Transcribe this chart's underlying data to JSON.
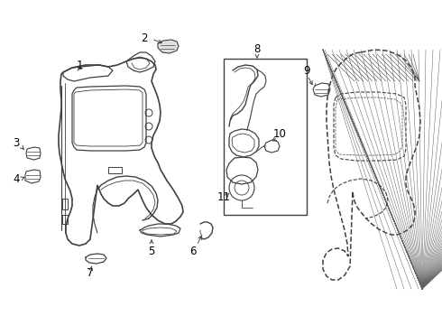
{
  "background_color": "#ffffff",
  "line_color": "#404040",
  "label_color": "#000000",
  "label_fontsize": 8.5,
  "fig_width": 4.9,
  "fig_height": 3.6,
  "dpi": 100
}
